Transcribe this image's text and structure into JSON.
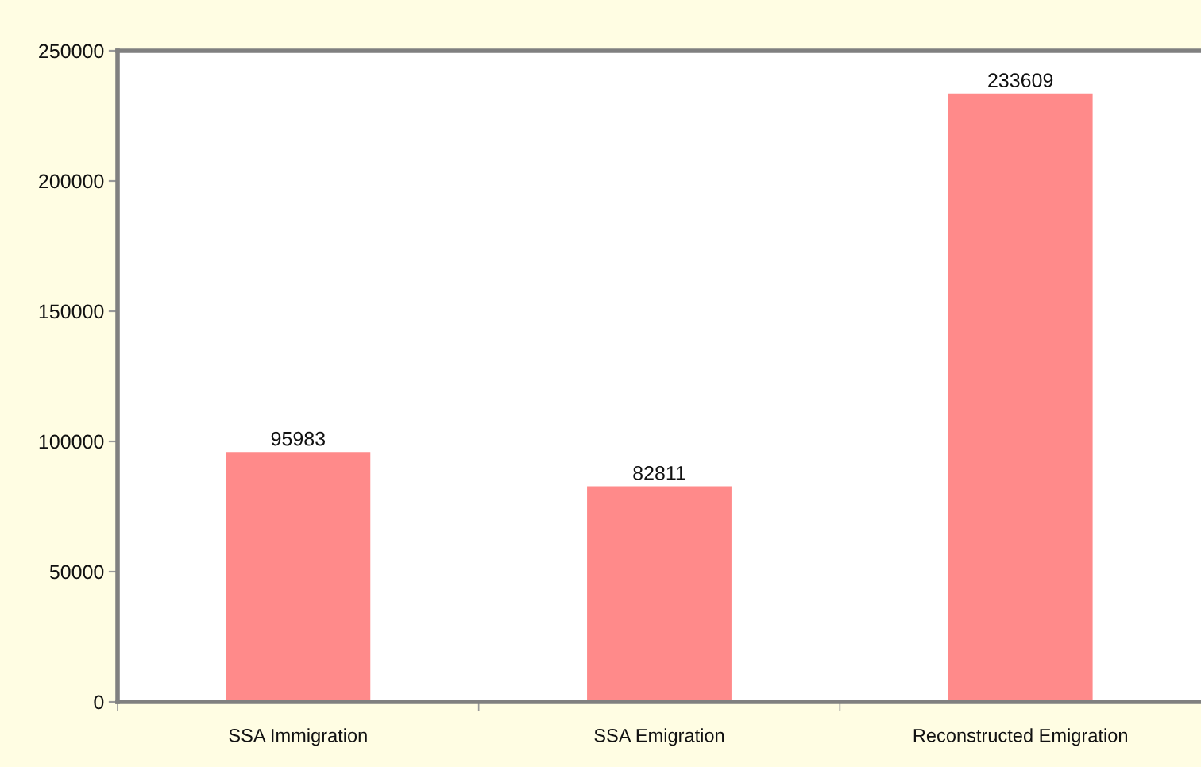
{
  "chart_data": {
    "type": "bar",
    "categories": [
      "SSA Immigration",
      "SSA Emigration",
      "Reconstructed Emigration"
    ],
    "values": [
      95983,
      82811,
      233609
    ],
    "color": "#ff8a8a",
    "ylim": [
      0,
      250000
    ],
    "yticks": [
      0,
      50000,
      100000,
      150000,
      200000,
      250000
    ],
    "data_labels": true,
    "grid": false,
    "legend": false
  }
}
